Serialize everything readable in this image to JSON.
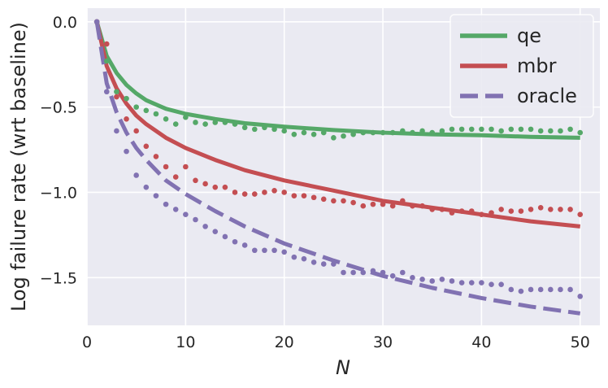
{
  "chart_data": {
    "type": "line",
    "xlabel": "N",
    "ylabel": "Log failure rate (wrt baseline)",
    "xlim": [
      0,
      52
    ],
    "ylim": [
      -1.78,
      0.08
    ],
    "xticks": [
      0,
      10,
      20,
      30,
      40,
      50
    ],
    "xtick_labels": [
      "0",
      "10",
      "20",
      "30",
      "40",
      "50"
    ],
    "yticks": [
      0.0,
      -0.5,
      -1.0,
      -1.5
    ],
    "ytick_labels": [
      "0.0",
      "−0.5",
      "−1.0",
      "−1.5"
    ],
    "grid": true,
    "legend_position": "top-right",
    "colors": {
      "background": "#eaeaf2",
      "grid": "#ffffff",
      "text": "#262626"
    },
    "series": [
      {
        "name": "qe",
        "color": "#55a868",
        "style": "solid",
        "fit": [
          [
            1,
            0.0
          ],
          [
            2,
            -0.2
          ],
          [
            3,
            -0.3
          ],
          [
            4,
            -0.37
          ],
          [
            5,
            -0.42
          ],
          [
            6,
            -0.46
          ],
          [
            8,
            -0.51
          ],
          [
            10,
            -0.54
          ],
          [
            13,
            -0.57
          ],
          [
            16,
            -0.595
          ],
          [
            20,
            -0.615
          ],
          [
            25,
            -0.635
          ],
          [
            30,
            -0.65
          ],
          [
            35,
            -0.66
          ],
          [
            40,
            -0.665
          ],
          [
            45,
            -0.675
          ],
          [
            50,
            -0.68
          ]
        ],
        "points": [
          [
            1,
            0.0
          ],
          [
            2,
            -0.23
          ],
          [
            3,
            -0.41
          ],
          [
            4,
            -0.45
          ],
          [
            5,
            -0.5
          ],
          [
            6,
            -0.52
          ],
          [
            7,
            -0.54
          ],
          [
            8,
            -0.57
          ],
          [
            9,
            -0.6
          ],
          [
            10,
            -0.56
          ],
          [
            11,
            -0.59
          ],
          [
            12,
            -0.6
          ],
          [
            13,
            -0.59
          ],
          [
            14,
            -0.59
          ],
          [
            15,
            -0.6
          ],
          [
            16,
            -0.62
          ],
          [
            17,
            -0.63
          ],
          [
            18,
            -0.62
          ],
          [
            19,
            -0.63
          ],
          [
            20,
            -0.64
          ],
          [
            21,
            -0.66
          ],
          [
            22,
            -0.65
          ],
          [
            23,
            -0.66
          ],
          [
            24,
            -0.65
          ],
          [
            25,
            -0.68
          ],
          [
            26,
            -0.67
          ],
          [
            27,
            -0.66
          ],
          [
            28,
            -0.65
          ],
          [
            29,
            -0.65
          ],
          [
            30,
            -0.65
          ],
          [
            31,
            -0.65
          ],
          [
            32,
            -0.64
          ],
          [
            33,
            -0.65
          ],
          [
            34,
            -0.64
          ],
          [
            35,
            -0.65
          ],
          [
            36,
            -0.64
          ],
          [
            37,
            -0.63
          ],
          [
            38,
            -0.63
          ],
          [
            39,
            -0.63
          ],
          [
            40,
            -0.63
          ],
          [
            41,
            -0.63
          ],
          [
            42,
            -0.64
          ],
          [
            43,
            -0.63
          ],
          [
            44,
            -0.63
          ],
          [
            45,
            -0.63
          ],
          [
            46,
            -0.64
          ],
          [
            47,
            -0.64
          ],
          [
            48,
            -0.64
          ],
          [
            49,
            -0.63
          ],
          [
            50,
            -0.65
          ]
        ]
      },
      {
        "name": "mbr",
        "color": "#c44e52",
        "style": "solid",
        "fit": [
          [
            1,
            0.0
          ],
          [
            2,
            -0.26
          ],
          [
            3,
            -0.39
          ],
          [
            4,
            -0.48
          ],
          [
            5,
            -0.55
          ],
          [
            6,
            -0.6
          ],
          [
            8,
            -0.68
          ],
          [
            10,
            -0.74
          ],
          [
            13,
            -0.81
          ],
          [
            16,
            -0.87
          ],
          [
            20,
            -0.93
          ],
          [
            25,
            -0.99
          ],
          [
            30,
            -1.05
          ],
          [
            35,
            -1.09
          ],
          [
            40,
            -1.13
          ],
          [
            45,
            -1.17
          ],
          [
            50,
            -1.2
          ]
        ],
        "points": [
          [
            1,
            0.0
          ],
          [
            2,
            -0.13
          ],
          [
            3,
            -0.44
          ],
          [
            4,
            -0.57
          ],
          [
            5,
            -0.64
          ],
          [
            6,
            -0.73
          ],
          [
            7,
            -0.79
          ],
          [
            8,
            -0.85
          ],
          [
            9,
            -0.91
          ],
          [
            10,
            -0.85
          ],
          [
            11,
            -0.93
          ],
          [
            12,
            -0.95
          ],
          [
            13,
            -0.97
          ],
          [
            14,
            -0.97
          ],
          [
            15,
            -1.0
          ],
          [
            16,
            -1.01
          ],
          [
            17,
            -1.01
          ],
          [
            18,
            -1.0
          ],
          [
            19,
            -0.99
          ],
          [
            20,
            -1.0
          ],
          [
            21,
            -1.02
          ],
          [
            22,
            -1.02
          ],
          [
            23,
            -1.03
          ],
          [
            24,
            -1.04
          ],
          [
            25,
            -1.05
          ],
          [
            26,
            -1.05
          ],
          [
            27,
            -1.06
          ],
          [
            28,
            -1.08
          ],
          [
            29,
            -1.07
          ],
          [
            30,
            -1.07
          ],
          [
            31,
            -1.08
          ],
          [
            32,
            -1.05
          ],
          [
            33,
            -1.08
          ],
          [
            34,
            -1.08
          ],
          [
            35,
            -1.1
          ],
          [
            36,
            -1.1
          ],
          [
            37,
            -1.12
          ],
          [
            38,
            -1.11
          ],
          [
            39,
            -1.11
          ],
          [
            40,
            -1.13
          ],
          [
            41,
            -1.12
          ],
          [
            42,
            -1.1
          ],
          [
            43,
            -1.11
          ],
          [
            44,
            -1.11
          ],
          [
            45,
            -1.1
          ],
          [
            46,
            -1.09
          ],
          [
            47,
            -1.1
          ],
          [
            48,
            -1.1
          ],
          [
            49,
            -1.1
          ],
          [
            50,
            -1.13
          ]
        ]
      },
      {
        "name": "oracle",
        "color": "#8172b2",
        "style": "dashed",
        "fit": [
          [
            1,
            0.0
          ],
          [
            2,
            -0.36
          ],
          [
            3,
            -0.53
          ],
          [
            4,
            -0.65
          ],
          [
            5,
            -0.74
          ],
          [
            6,
            -0.81
          ],
          [
            8,
            -0.93
          ],
          [
            10,
            -1.01
          ],
          [
            13,
            -1.11
          ],
          [
            16,
            -1.2
          ],
          [
            20,
            -1.3
          ],
          [
            25,
            -1.4
          ],
          [
            30,
            -1.49
          ],
          [
            35,
            -1.56
          ],
          [
            40,
            -1.62
          ],
          [
            45,
            -1.67
          ],
          [
            50,
            -1.71
          ]
        ],
        "points": [
          [
            1,
            0.0
          ],
          [
            2,
            -0.41
          ],
          [
            3,
            -0.64
          ],
          [
            4,
            -0.76
          ],
          [
            5,
            -0.9
          ],
          [
            6,
            -0.97
          ],
          [
            7,
            -1.02
          ],
          [
            8,
            -1.07
          ],
          [
            9,
            -1.1
          ],
          [
            10,
            -1.13
          ],
          [
            11,
            -1.16
          ],
          [
            12,
            -1.2
          ],
          [
            13,
            -1.23
          ],
          [
            14,
            -1.26
          ],
          [
            15,
            -1.29
          ],
          [
            16,
            -1.31
          ],
          [
            17,
            -1.34
          ],
          [
            18,
            -1.34
          ],
          [
            19,
            -1.34
          ],
          [
            20,
            -1.35
          ],
          [
            21,
            -1.38
          ],
          [
            22,
            -1.39
          ],
          [
            23,
            -1.41
          ],
          [
            24,
            -1.42
          ],
          [
            25,
            -1.42
          ],
          [
            26,
            -1.47
          ],
          [
            27,
            -1.47
          ],
          [
            28,
            -1.47
          ],
          [
            29,
            -1.46
          ],
          [
            30,
            -1.47
          ],
          [
            31,
            -1.49
          ],
          [
            32,
            -1.47
          ],
          [
            33,
            -1.5
          ],
          [
            34,
            -1.51
          ],
          [
            35,
            -1.52
          ],
          [
            36,
            -1.51
          ],
          [
            37,
            -1.52
          ],
          [
            38,
            -1.53
          ],
          [
            39,
            -1.53
          ],
          [
            40,
            -1.53
          ],
          [
            41,
            -1.54
          ],
          [
            42,
            -1.54
          ],
          [
            43,
            -1.57
          ],
          [
            44,
            -1.58
          ],
          [
            45,
            -1.57
          ],
          [
            46,
            -1.57
          ],
          [
            47,
            -1.57
          ],
          [
            48,
            -1.57
          ],
          [
            49,
            -1.57
          ],
          [
            50,
            -1.61
          ]
        ]
      }
    ]
  }
}
